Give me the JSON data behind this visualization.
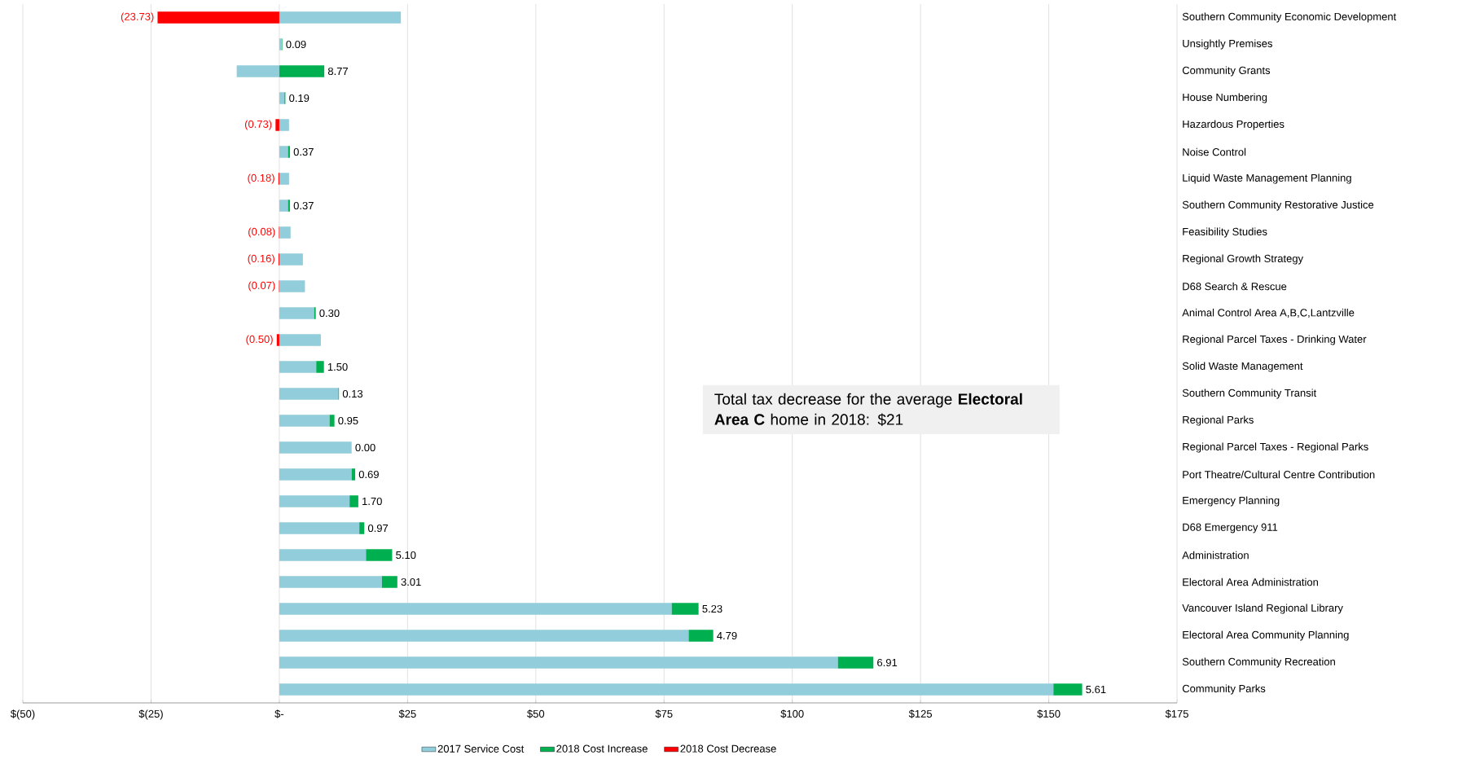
{
  "chart_data": {
    "type": "bar",
    "orientation": "horizontal",
    "stacked": true,
    "categories": [
      "Southern Community Economic Development",
      "Unsightly Premises",
      "Community Grants",
      "House Numbering",
      "Hazardous Properties",
      "Noise Control",
      "Liquid Waste Management Planning",
      "Southern Community Restorative Justice",
      "Feasibility Studies",
      "Regional Growth Strategy",
      "D68 Search & Rescue",
      "Animal Control Area A,B,C,Lantzville",
      "Regional Parcel Taxes - Drinking Water",
      "Solid Waste  Management",
      "Southern Community Transit",
      "Regional Parks",
      "Regional Parcel Taxes - Regional Parks",
      "Port Theatre/Cultural Centre Contribution",
      "Emergency Planning",
      "D68 Emergency 911",
      "Administration",
      "Electoral Area Administration",
      "Vancouver Island Regional Library",
      "Electoral Area Community Planning",
      "Southern Community Recreation",
      "Community Parks"
    ],
    "series": [
      {
        "name": "2017 Service Cost",
        "color": "#92cddc",
        "values": [
          23.7,
          0.5,
          -8.3,
          1.0,
          1.9,
          1.7,
          1.9,
          1.7,
          2.2,
          4.6,
          5.0,
          6.8,
          8.1,
          7.2,
          11.5,
          9.8,
          14.1,
          14.1,
          13.7,
          15.6,
          16.9,
          20.0,
          76.5,
          79.8,
          108.9,
          150.9
        ]
      },
      {
        "name": "2018 Cost Increase",
        "color": "#00b050",
        "values": [
          null,
          0.09,
          8.77,
          0.19,
          null,
          0.37,
          null,
          0.37,
          null,
          null,
          null,
          0.3,
          null,
          1.5,
          0.13,
          0.95,
          0.0,
          0.69,
          1.7,
          0.97,
          5.1,
          3.01,
          5.23,
          4.79,
          6.91,
          5.61
        ],
        "value_labels": [
          null,
          "0.09",
          "8.77",
          "0.19",
          null,
          "0.37",
          null,
          "0.37",
          null,
          null,
          null,
          "0.30",
          null,
          "1.50",
          "0.13",
          "0.95",
          "0.00",
          "0.69",
          "1.70",
          "0.97",
          "5.10",
          "3.01",
          "5.23",
          "4.79",
          "6.91",
          "5.61"
        ]
      },
      {
        "name": "2018 Cost Decrease",
        "color": "#ff0000",
        "values": [
          -23.73,
          null,
          null,
          null,
          -0.73,
          null,
          -0.18,
          null,
          -0.08,
          -0.16,
          -0.07,
          null,
          -0.5,
          null,
          null,
          null,
          null,
          null,
          null,
          null,
          null,
          null,
          null,
          null,
          null,
          null
        ],
        "value_labels": [
          "(23.73)",
          null,
          null,
          null,
          "(0.73)",
          null,
          "(0.18)",
          null,
          "(0.08)",
          "(0.16)",
          "(0.07)",
          null,
          "(0.50)",
          null,
          null,
          null,
          null,
          null,
          null,
          null,
          null,
          null,
          null,
          null,
          null,
          null
        ]
      }
    ],
    "xlim": [
      -50,
      175
    ],
    "xticks": [
      {
        "value": -50,
        "label": "$(50)"
      },
      {
        "value": -25,
        "label": "$(25)"
      },
      {
        "value": 0,
        "label": "$-"
      },
      {
        "value": 25,
        "label": "$25"
      },
      {
        "value": 50,
        "label": "$50"
      },
      {
        "value": 75,
        "label": "$75"
      },
      {
        "value": 100,
        "label": "$100"
      },
      {
        "value": 125,
        "label": "$125"
      },
      {
        "value": 150,
        "label": "$150"
      },
      {
        "value": 175,
        "label": "$175"
      }
    ],
    "grid": "x",
    "legend": "bottom",
    "annotations": [
      "Total tax decrease for the average **Electoral Area C** home in 2018: $21"
    ]
  }
}
